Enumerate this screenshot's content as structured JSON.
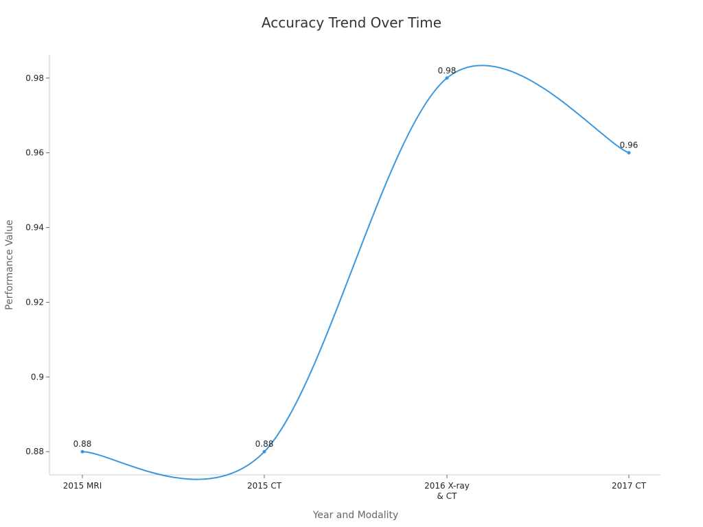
{
  "chart_data": {
    "type": "line",
    "title": "Accuracy Trend Over Time",
    "xlabel": "Year and Modality",
    "ylabel": "Performance Value",
    "categories": [
      "2015 MRI",
      "2015 CT",
      "2016 X-ray & CT",
      "2017 CT"
    ],
    "category_lines": [
      [
        "2015 MRI"
      ],
      [
        "2015 CT"
      ],
      [
        "2016 X-ray",
        "& CT"
      ],
      [
        "2017 CT"
      ]
    ],
    "series": [
      {
        "values": [
          0.88,
          0.88,
          0.98,
          0.96
        ],
        "color": "#3a96dd"
      }
    ],
    "data_labels": [
      "0.88",
      "0.88",
      "0.98",
      "0.96"
    ],
    "yticks": [
      0.88,
      0.9,
      0.92,
      0.94,
      0.96,
      0.98
    ],
    "ytick_labels": [
      "0.88",
      "0.9",
      "0.92",
      "0.94",
      "0.96",
      "0.98"
    ],
    "ylim": [
      0.8738,
      0.9862
    ],
    "grid": false,
    "legend": "none",
    "smooth": true
  }
}
